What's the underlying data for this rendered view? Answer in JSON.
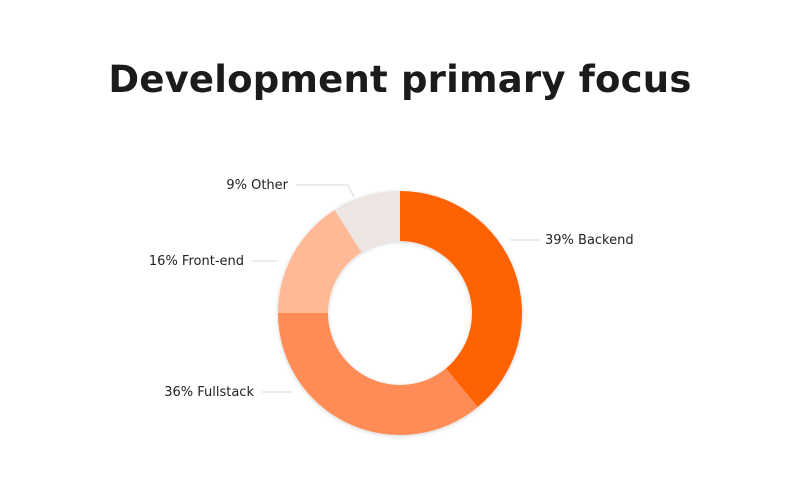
{
  "title": "Development primary focus",
  "chart_data": {
    "type": "pie",
    "title": "Development primary focus",
    "donut": true,
    "legend": "none",
    "start": "top",
    "direction": "clockwise",
    "slices": [
      {
        "name": "Backend",
        "value": 39,
        "label": "39% Backend",
        "color": "#ff6200"
      },
      {
        "name": "Fullstack",
        "value": 36,
        "label": "36% Fullstack",
        "color": "#ff8c57"
      },
      {
        "name": "Front-end",
        "value": 16,
        "label": "16% Front-end",
        "color": "#ffb996"
      },
      {
        "name": "Other",
        "value": 9,
        "label": "9% Other",
        "color": "#ece5e1"
      }
    ]
  }
}
